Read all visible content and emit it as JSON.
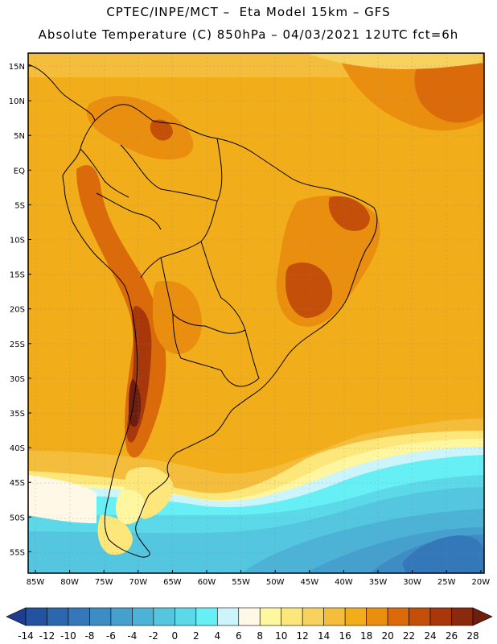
{
  "header": {
    "line1": "CPTEC/INPE/MCT –  Eta Model 15km – GFS",
    "line2": "Absolute Temperature (C) 850hPa – 04/03/2021 12UTC fct=6h"
  },
  "axes": {
    "lat_labels": [
      "15N",
      "10N",
      "5N",
      "EQ",
      "5S",
      "10S",
      "15S",
      "20S",
      "25S",
      "30S",
      "35S",
      "40S",
      "45S",
      "50S",
      "55S"
    ],
    "lon_labels": [
      "85W",
      "80W",
      "75W",
      "70W",
      "65W",
      "60W",
      "55W",
      "50W",
      "45W",
      "40W",
      "35W",
      "30W",
      "25W",
      "20W"
    ]
  },
  "colorbar": {
    "values": [
      "-14",
      "-12",
      "-10",
      "-8",
      "-6",
      "-4",
      "-2",
      "0",
      "2",
      "4",
      "6",
      "8",
      "10",
      "12",
      "14",
      "16",
      "18",
      "20",
      "22",
      "24",
      "26",
      "28"
    ],
    "colors": [
      "#1e3d8f",
      "#2352a0",
      "#2b66ae",
      "#3478b9",
      "#3d8cc3",
      "#45a0cd",
      "#4db3d6",
      "#55c6df",
      "#5cd9e8",
      "#66f0f6",
      "#ccf4fb",
      "#fff8e6",
      "#fff7a0",
      "#fde67a",
      "#f8d25e",
      "#f4bd3c",
      "#f2ad1a",
      "#ea8e0f",
      "#da6a0a",
      "#c44f08",
      "#a8380a",
      "#8a2a0c",
      "#6e1e0e"
    ]
  }
}
